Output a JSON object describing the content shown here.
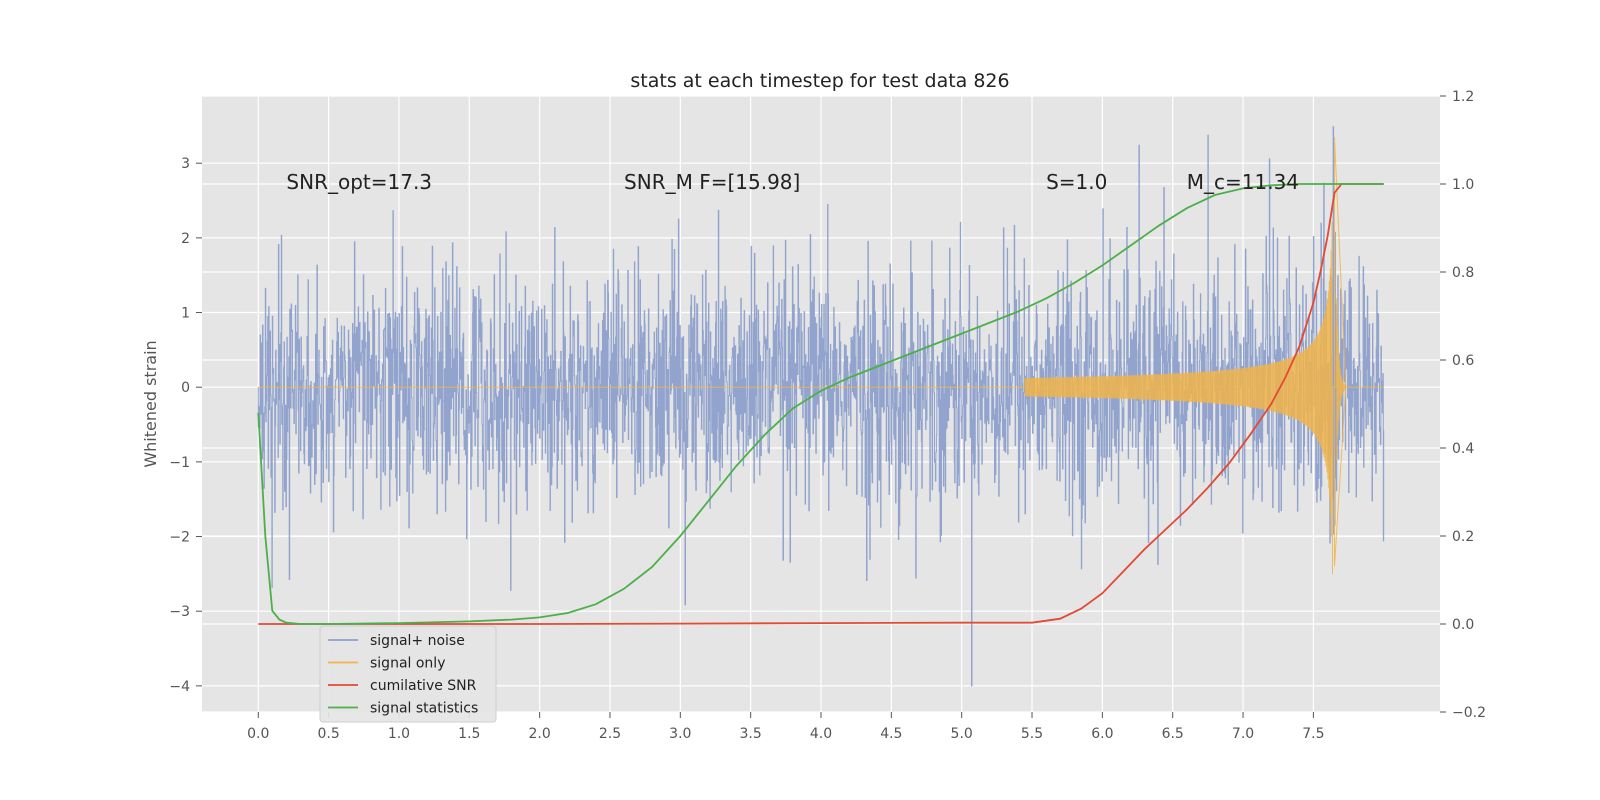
{
  "chart_data": {
    "type": "line",
    "title": "stats at each timestep for test data 826",
    "xlabel": "",
    "ylabel": "Whitened strain",
    "y2label": "",
    "xlim": [
      -0.4,
      8.4
    ],
    "ylim": [
      -4.35,
      3.9
    ],
    "y2lim": [
      -0.2,
      1.2
    ],
    "xticks": [
      "0.0",
      "0.5",
      "1.0",
      "1.5",
      "2.0",
      "2.5",
      "3.0",
      "3.5",
      "4.0",
      "4.5",
      "5.0",
      "5.5",
      "6.0",
      "6.5",
      "7.0",
      "7.5"
    ],
    "yticks": [
      "3",
      "2",
      "1",
      "0",
      "−1",
      "−2",
      "−3",
      "−4"
    ],
    "y2ticks": [
      "1.2",
      "1.0",
      "0.8",
      "0.6",
      "0.4",
      "0.2",
      "0.0",
      "−0.2"
    ],
    "grid": true,
    "legend_position": "lower-left",
    "annotations": [
      {
        "text": "SNR_opt=17.3",
        "x": 0.2,
        "y": 2.75
      },
      {
        "text": "SNR_M F=[15.98]",
        "x": 2.6,
        "y": 2.75
      },
      {
        "text": "S=1.0",
        "x": 5.6,
        "y": 2.75
      },
      {
        "text": "M_c=11.34",
        "x": 6.6,
        "y": 2.75
      }
    ],
    "series": [
      {
        "name": "signal+ noise",
        "axis": "left",
        "color": "#8da0cb",
        "description": "whitened noisy strain, approx. amplitude +/-1.5 with spikes to about 3.5 and -4.0",
        "x_range": [
          0,
          8.0
        ],
        "amplitude_approx": 1.5
      },
      {
        "name": "signal only",
        "axis": "left",
        "color": "#f0b44a",
        "description": "chirp signal growing from ~5.5 to merger at ~7.65",
        "merger_time": 7.65,
        "peak_values": [
          3.35,
          -2.4
        ]
      },
      {
        "name": "cumilative SNR",
        "axis": "right",
        "color": "#e24a33",
        "x": [
          0.0,
          0.5,
          1.0,
          2.0,
          3.0,
          4.0,
          5.0,
          5.5,
          5.7,
          5.85,
          6.0,
          6.15,
          6.3,
          6.45,
          6.6,
          6.75,
          6.9,
          7.05,
          7.2,
          7.3,
          7.4,
          7.5,
          7.55,
          7.6,
          7.65,
          7.7,
          8.0
        ],
        "y": [
          0.0,
          0.0,
          0.0,
          0.0,
          0.001,
          0.002,
          0.003,
          0.003,
          0.012,
          0.035,
          0.07,
          0.12,
          0.17,
          0.215,
          0.26,
          0.31,
          0.365,
          0.43,
          0.5,
          0.56,
          0.63,
          0.73,
          0.8,
          0.88,
          0.98,
          1.0,
          1.0
        ]
      },
      {
        "name": "signal statistics",
        "axis": "right",
        "color": "#4daf4a",
        "x": [
          0.0,
          0.05,
          0.1,
          0.15,
          0.2,
          0.3,
          0.5,
          1.0,
          1.5,
          1.8,
          2.0,
          2.2,
          2.4,
          2.6,
          2.8,
          3.0,
          3.2,
          3.4,
          3.6,
          3.8,
          4.0,
          4.2,
          4.4,
          4.6,
          4.8,
          5.0,
          5.2,
          5.4,
          5.6,
          5.8,
          6.0,
          6.2,
          6.4,
          6.6,
          6.8,
          7.0,
          7.2,
          7.4,
          7.6,
          7.8,
          8.0
        ],
        "y": [
          0.48,
          0.2,
          0.03,
          0.01,
          0.003,
          0.0,
          0.0,
          0.002,
          0.006,
          0.01,
          0.015,
          0.025,
          0.045,
          0.08,
          0.13,
          0.2,
          0.28,
          0.36,
          0.43,
          0.49,
          0.53,
          0.56,
          0.585,
          0.61,
          0.635,
          0.66,
          0.685,
          0.71,
          0.74,
          0.775,
          0.815,
          0.86,
          0.905,
          0.945,
          0.975,
          0.99,
          0.997,
          1.0,
          1.0,
          1.0,
          1.0
        ]
      }
    ]
  }
}
